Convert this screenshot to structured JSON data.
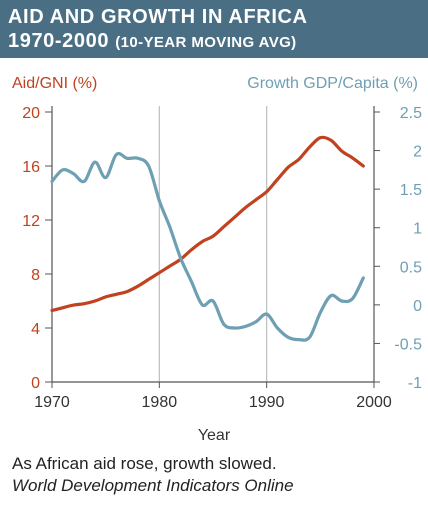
{
  "header": {
    "title_line1": "AID AND GROWTH IN AFRICA",
    "title_line2_main": "1970-2000",
    "title_line2_small": "(10-YEAR MOVING AVG)"
  },
  "caption": {
    "text": "As African aid rose, growth slowed.",
    "source": "World Development Indicators Online"
  },
  "colors": {
    "header_bg": "#4a6f84",
    "aid": "#c0421e",
    "growth": "#6e9fb3",
    "grid": "#bdbdbd",
    "axis": "#555555"
  },
  "chart_data": {
    "type": "line",
    "xlabel": "Year",
    "xlim": [
      1970,
      2000
    ],
    "xticks": [
      "1970",
      "1980",
      "1990",
      "2000"
    ],
    "left_axis": {
      "label": "Aid/GNI (%)",
      "ylim": [
        0,
        20
      ],
      "ticks": [
        "0",
        "4",
        "8",
        "12",
        "16",
        "20"
      ]
    },
    "right_axis": {
      "label": "Growth GDP/Capita (%)",
      "ylim": [
        -1,
        2.5
      ],
      "ticks": [
        "-1",
        "-0.5",
        "0",
        "0.5",
        "1",
        "1.5",
        "2",
        "2.5"
      ]
    },
    "grid": "vertical at 1980 and 1990",
    "series": [
      {
        "name": "Aid/GNI (%)",
        "axis": "left",
        "x": [
          1970,
          1971,
          1972,
          1973,
          1974,
          1975,
          1976,
          1977,
          1978,
          1979,
          1980,
          1981,
          1982,
          1983,
          1984,
          1985,
          1986,
          1987,
          1988,
          1989,
          1990,
          1991,
          1992,
          1993,
          1994,
          1995,
          1996,
          1997,
          1998,
          1999
        ],
        "values": [
          5.3,
          5.5,
          5.7,
          5.8,
          6.0,
          6.3,
          6.5,
          6.7,
          7.1,
          7.6,
          8.1,
          8.6,
          9.1,
          9.8,
          10.4,
          10.8,
          11.5,
          12.2,
          12.9,
          13.5,
          14.1,
          15.0,
          15.9,
          16.5,
          17.4,
          18.1,
          17.9,
          17.1,
          16.6,
          16.0
        ]
      },
      {
        "name": "Growth GDP/Capita (%)",
        "axis": "right",
        "x": [
          1970,
          1971,
          1972,
          1973,
          1974,
          1975,
          1976,
          1977,
          1978,
          1979,
          1980,
          1981,
          1982,
          1983,
          1984,
          1985,
          1986,
          1987,
          1988,
          1989,
          1990,
          1991,
          1992,
          1993,
          1994,
          1995,
          1996,
          1997,
          1998,
          1999
        ],
        "values": [
          1.6,
          1.75,
          1.7,
          1.6,
          1.85,
          1.65,
          1.95,
          1.9,
          1.9,
          1.8,
          1.35,
          1.0,
          0.6,
          0.3,
          0.0,
          0.05,
          -0.25,
          -0.3,
          -0.28,
          -0.22,
          -0.12,
          -0.3,
          -0.42,
          -0.45,
          -0.42,
          -0.1,
          0.12,
          0.05,
          0.08,
          0.35
        ]
      }
    ]
  }
}
